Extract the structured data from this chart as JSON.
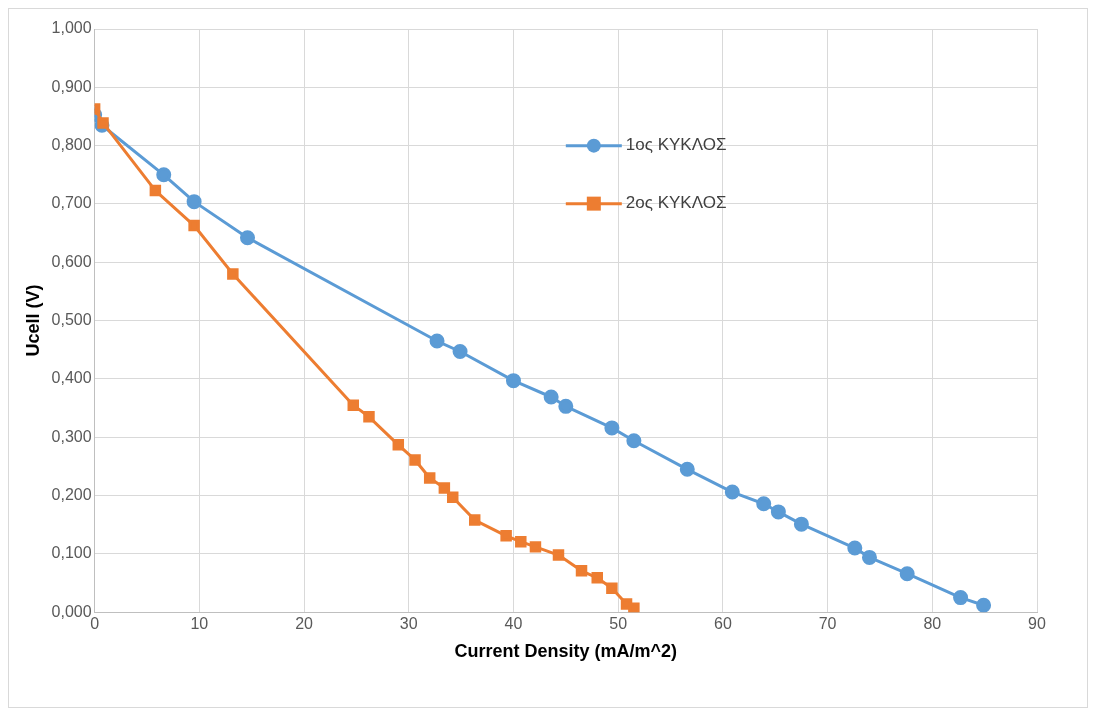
{
  "chart_data": {
    "type": "line",
    "xlabel": "Current Density (mA/m^2)",
    "ylabel": "Ucell (V)",
    "xlim": [
      0,
      90
    ],
    "xticks": [
      0,
      10,
      20,
      30,
      40,
      50,
      60,
      70,
      80,
      90
    ],
    "ylim": [
      0,
      1
    ],
    "yticks": [
      {
        "value": 0,
        "label": "0,000"
      },
      {
        "value": 0.1,
        "label": "0,100"
      },
      {
        "value": 0.2,
        "label": "0,200"
      },
      {
        "value": 0.3,
        "label": "0,300"
      },
      {
        "value": 0.4,
        "label": "0,400"
      },
      {
        "value": 0.5,
        "label": "0,500"
      },
      {
        "value": 0.6,
        "label": "0,600"
      },
      {
        "value": 0.7,
        "label": "0,700"
      },
      {
        "value": 0.8,
        "label": "0,800"
      },
      {
        "value": 0.9,
        "label": "0,900"
      },
      {
        "value": 1,
        "label": "1,000"
      }
    ],
    "grid": true,
    "legend": "top right",
    "line_style": "solid",
    "series": [
      {
        "name": "1ος ΚΥΚΛΟΣ",
        "color": "#5b9bd5",
        "marker": "circle",
        "x": [
          0,
          0.7,
          6.6,
          9.5,
          14.6,
          32.7,
          34.9,
          40.0,
          43.6,
          45.0,
          49.4,
          51.5,
          56.6,
          60.9,
          63.9,
          65.3,
          67.5,
          72.6,
          74.0,
          77.6,
          82.7,
          84.9
        ],
        "values": [
          0.853,
          0.835,
          0.75,
          0.704,
          0.642,
          0.465,
          0.447,
          0.397,
          0.369,
          0.353,
          0.316,
          0.294,
          0.245,
          0.206,
          0.186,
          0.172,
          0.151,
          0.11,
          0.094,
          0.066,
          0.025,
          0.012
        ]
      },
      {
        "name": "2ος ΚΥΚΛΟΣ",
        "color": "#ed7d31",
        "marker": "square",
        "x": [
          0,
          0.8,
          5.8,
          9.5,
          13.2,
          24.7,
          26.2,
          29.0,
          30.6,
          32.0,
          33.4,
          34.2,
          36.3,
          39.3,
          40.7,
          42.1,
          44.3,
          46.5,
          48.0,
          49.4,
          50.8,
          51.5
        ],
        "values": [
          0.863,
          0.839,
          0.723,
          0.663,
          0.58,
          0.355,
          0.335,
          0.287,
          0.261,
          0.23,
          0.213,
          0.197,
          0.158,
          0.131,
          0.121,
          0.112,
          0.098,
          0.071,
          0.059,
          0.041,
          0.014,
          0.007
        ]
      }
    ]
  }
}
